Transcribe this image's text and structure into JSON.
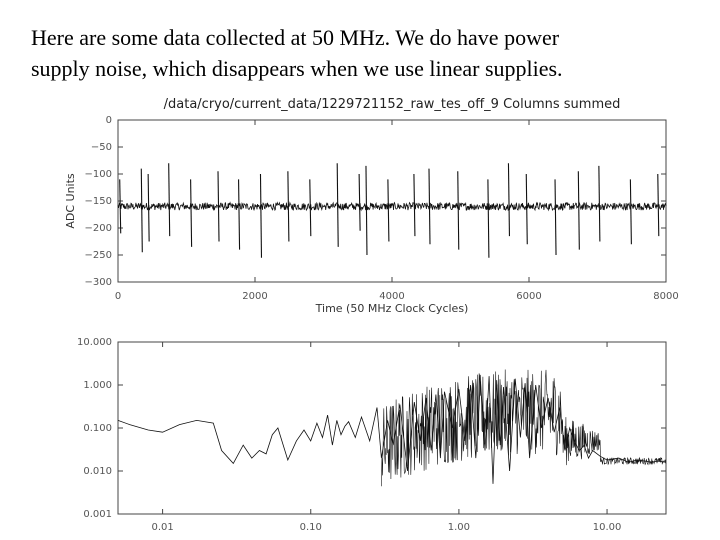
{
  "slide": {
    "lines": [
      "Here are some data collected at 50 MHz.  We do have power",
      "supply noise, which disappears when we use linear supplies."
    ]
  },
  "chart_data": [
    {
      "type": "line",
      "title": "/data/cryo/current_data/1229721152_raw_tes_off_9 Columns summed",
      "xlabel": "Time (50 MHz Clock Cycles)",
      "ylabel": "ADC Units",
      "xlim": [
        0,
        8000
      ],
      "ylim": [
        -300,
        0
      ],
      "xticks": [
        "0",
        "2000",
        "4000",
        "6000",
        "8000"
      ],
      "yticks": [
        "0",
        "−50",
        "−100",
        "−150",
        "−200",
        "−250",
        "−300"
      ],
      "baseline": -160,
      "noise_amplitude": 7,
      "spike_times": [
        25,
        340,
        440,
        740,
        1060,
        1460,
        1760,
        2080,
        2480,
        2800,
        3200,
        3520,
        3620,
        3940,
        4320,
        4540,
        4960,
        5400,
        5700,
        5960,
        6380,
        6720,
        7020,
        7480,
        7880
      ],
      "spike_peaks": [
        -110,
        -90,
        -100,
        -80,
        -110,
        -95,
        -110,
        -100,
        -95,
        -110,
        -80,
        -100,
        -85,
        -110,
        -100,
        -90,
        -95,
        -110,
        -80,
        -100,
        -110,
        -95,
        -85,
        -110,
        -100
      ],
      "spike_troughs": [
        -210,
        -245,
        -225,
        -215,
        -235,
        -225,
        -240,
        -255,
        -225,
        -215,
        -235,
        -205,
        -250,
        -225,
        -215,
        -230,
        -240,
        -255,
        -215,
        -230,
        -250,
        -240,
        -225,
        -230,
        -215
      ],
      "grid": false
    },
    {
      "type": "line",
      "title": "",
      "xlabel": "",
      "ylabel": "",
      "xscale": "log",
      "yscale": "log",
      "xlim": [
        0.005,
        25
      ],
      "ylim": [
        0.001,
        10
      ],
      "xticks": [
        "0.01",
        "0.10",
        "1.00",
        "10.00"
      ],
      "yticks": [
        "10.000",
        "1.000",
        "0.100",
        "0.010",
        "0.001"
      ],
      "x": [
        0.005,
        0.006,
        0.008,
        0.01,
        0.013,
        0.017,
        0.022,
        0.025,
        0.03,
        0.035,
        0.04,
        0.045,
        0.05,
        0.055,
        0.06,
        0.07,
        0.08,
        0.09,
        0.1,
        0.11,
        0.12,
        0.13,
        0.14,
        0.15,
        0.16,
        0.17,
        0.18,
        0.2,
        0.22,
        0.25,
        0.28,
        0.3,
        0.33,
        0.36,
        0.4,
        0.45,
        0.5,
        0.55,
        0.6,
        0.65,
        0.7,
        0.75,
        0.8,
        0.9,
        1.0,
        1.1,
        1.2,
        1.3,
        1.4,
        1.5,
        1.6,
        1.7,
        1.8,
        1.9,
        2.0,
        2.2,
        2.4,
        2.6,
        2.8,
        3.0,
        3.3,
        3.6,
        4.0,
        4.4,
        4.8,
        5.2,
        5.6,
        6.0,
        6.5,
        7.0,
        7.5,
        8.0,
        9.0,
        10.0,
        12.0,
        14.0,
        16.0,
        18.0,
        20.0,
        22.0,
        25.0
      ],
      "y": [
        0.15,
        0.12,
        0.09,
        0.08,
        0.12,
        0.15,
        0.13,
        0.03,
        0.015,
        0.04,
        0.02,
        0.03,
        0.025,
        0.07,
        0.1,
        0.018,
        0.05,
        0.09,
        0.05,
        0.13,
        0.06,
        0.2,
        0.04,
        0.15,
        0.07,
        0.11,
        0.14,
        0.06,
        0.18,
        0.05,
        0.3,
        0.02,
        0.15,
        0.04,
        0.35,
        0.01,
        0.4,
        0.05,
        0.5,
        0.03,
        0.6,
        0.02,
        0.7,
        0.1,
        0.8,
        0.05,
        1.0,
        0.02,
        1.2,
        0.03,
        1.6,
        0.005,
        1.3,
        0.04,
        0.9,
        0.01,
        1.4,
        0.06,
        1.1,
        0.02,
        1.0,
        0.1,
        0.5,
        0.08,
        0.3,
        0.03,
        0.1,
        0.05,
        0.03,
        0.04,
        0.02,
        0.03,
        0.022,
        0.018,
        0.02,
        0.016,
        0.018,
        0.017,
        0.016,
        0.017,
        0.016
      ],
      "grid": false
    }
  ]
}
